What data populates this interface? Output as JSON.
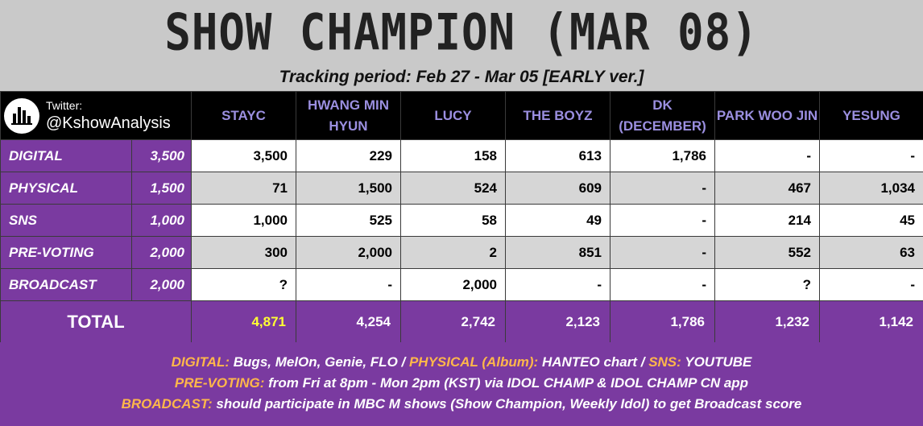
{
  "title": "SHOW CHAMPION (MAR 08)",
  "subtitle": "Tracking period: Feb 27 - Mar 05 [EARLY ver.]",
  "brand": {
    "line1": "Twitter:",
    "line2": "@KshowAnalysis",
    "icon": "bar-chart-icon"
  },
  "artists": [
    "STAYC",
    "HWANG MIN HYUN",
    "LUCY",
    "THE BOYZ",
    "DK (DECEMBER)",
    "PARK WOO JIN",
    "YESUNG"
  ],
  "rows": [
    {
      "category": "DIGITAL",
      "max": "3,500",
      "values": [
        "3,500",
        "229",
        "158",
        "613",
        "1,786",
        "-",
        "-"
      ]
    },
    {
      "category": "PHYSICAL",
      "max": "1,500",
      "values": [
        "71",
        "1,500",
        "524",
        "609",
        "-",
        "467",
        "1,034"
      ]
    },
    {
      "category": "SNS",
      "max": "1,000",
      "values": [
        "1,000",
        "525",
        "58",
        "49",
        "-",
        "214",
        "45"
      ]
    },
    {
      "category": "PRE-VOTING",
      "max": "2,000",
      "values": [
        "300",
        "2,000",
        "2",
        "851",
        "-",
        "552",
        "63"
      ]
    },
    {
      "category": "BROADCAST",
      "max": "2,000",
      "values": [
        "?",
        "-",
        "2,000",
        "-",
        "-",
        "?",
        "-"
      ]
    }
  ],
  "total": {
    "label": "TOTAL",
    "values": [
      "4,871",
      "4,254",
      "2,742",
      "2,123",
      "1,786",
      "1,232",
      "1,142"
    ]
  },
  "footer": {
    "line1": [
      {
        "key": "DIGITAL:",
        "text": " Bugs, MelOn, Genie, FLO / "
      },
      {
        "key": "PHYSICAL (Album):",
        "text": " HANTEO chart / "
      },
      {
        "key": "SNS:",
        "text": " YOUTUBE"
      }
    ],
    "line2": [
      {
        "key": "PRE-VOTING:",
        "text": " from Fri at 8pm - Mon 2pm (KST) via IDOL CHAMP & IDOL CHAMP CN app"
      }
    ],
    "line3": [
      {
        "key": "BROADCAST:",
        "text": " should participate in MBC M shows (Show Champion, Weekly Idol) to get Broadcast score"
      }
    ]
  },
  "colors": {
    "purple": "#7a3aa0",
    "header_artist": "#9b8fe0",
    "winner": "#ffff33",
    "footer_key": "#ffb74a"
  }
}
